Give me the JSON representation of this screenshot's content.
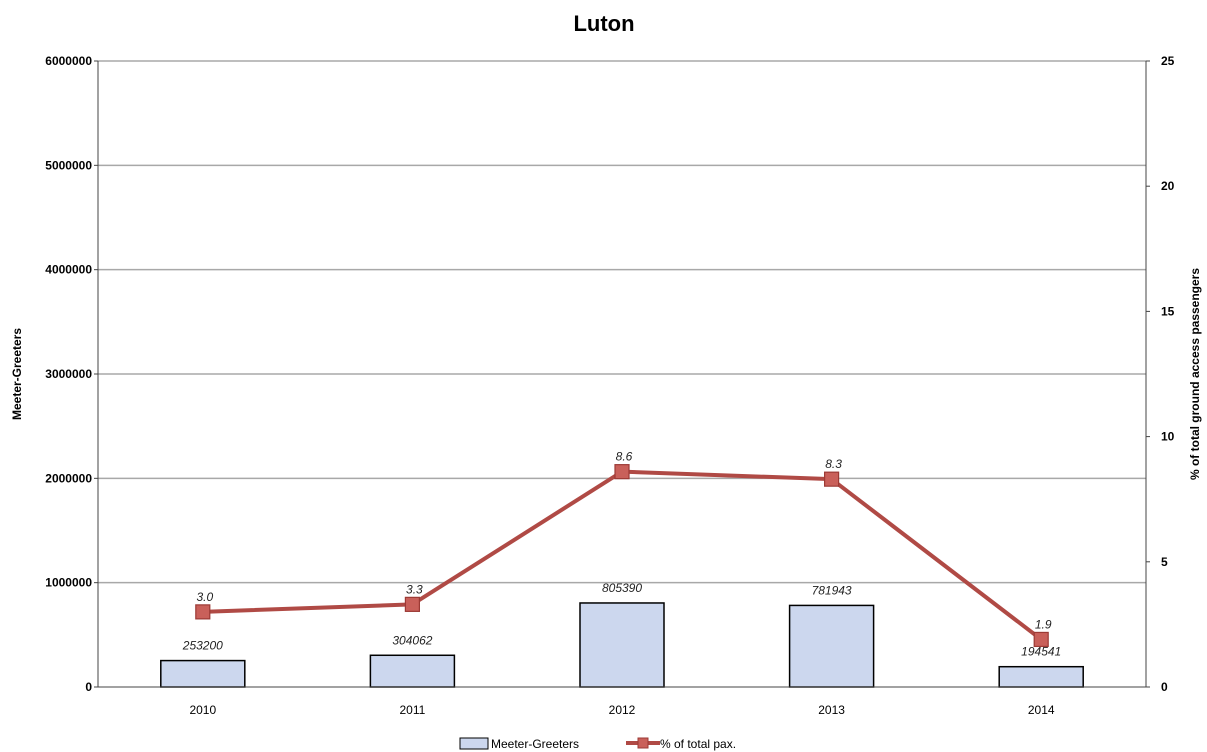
{
  "chart_data": {
    "type": "bar",
    "title": "Luton",
    "categories": [
      "2010",
      "2011",
      "2012",
      "2013",
      "2014"
    ],
    "series": [
      {
        "name": "Meeter-Greeters",
        "type": "bar",
        "axis": "left",
        "values": [
          253200,
          304062,
          805390,
          781943,
          194541
        ],
        "labels": [
          "253200",
          "304062",
          "805390",
          "781943",
          "194541"
        ],
        "color": "#ccd7ee"
      },
      {
        "name": "% of total pax.",
        "type": "line",
        "axis": "right",
        "values": [
          3.0,
          3.3,
          8.6,
          8.3,
          1.9
        ],
        "labels": [
          "3.0",
          "3.3",
          "8.6",
          "8.3",
          "1.9"
        ],
        "color": "#b04a45"
      }
    ],
    "y_left": {
      "label": "Meeter-Greeters",
      "ylim": [
        0,
        6000000
      ],
      "ticks": [
        "0",
        "1000000",
        "2000000",
        "3000000",
        "4000000",
        "5000000",
        "6000000"
      ]
    },
    "y_right": {
      "label": "% of total ground access passengers",
      "ylim": [
        0,
        25
      ],
      "ticks": [
        "0",
        "5",
        "10",
        "15",
        "20",
        "25"
      ]
    },
    "grid": true,
    "legend": "bottom"
  }
}
